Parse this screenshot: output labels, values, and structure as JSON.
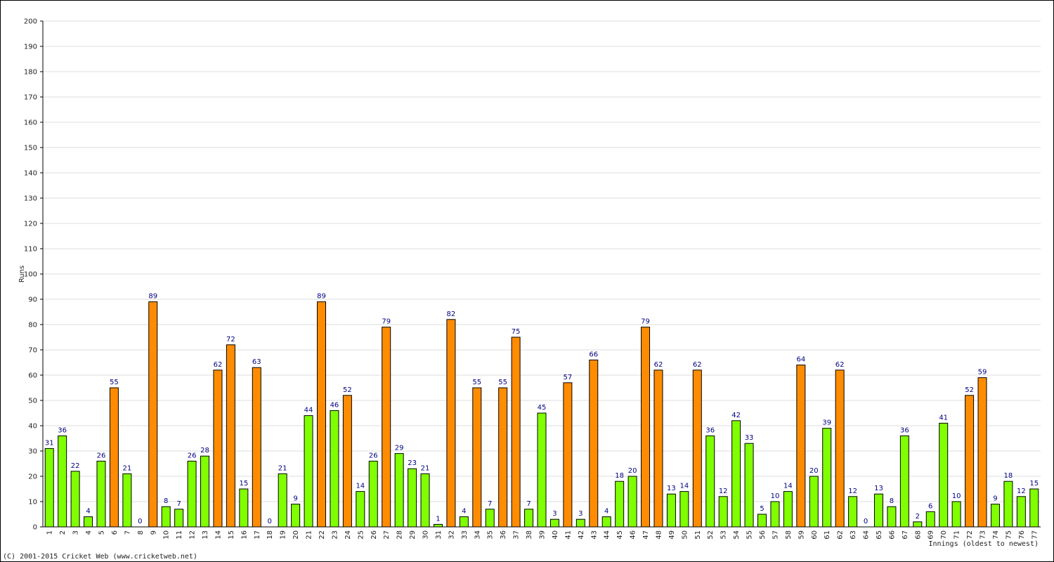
{
  "chart_data": {
    "type": "bar",
    "y_label": "Runs",
    "x_label": "Innings (oldest to newest)",
    "footer": "(C) 2001-2015 Cricket Web (www.cricketweb.net)",
    "categories": [
      "1",
      "2",
      "3",
      "4",
      "5",
      "6",
      "7",
      "8",
      "9",
      "10",
      "11",
      "12",
      "13",
      "14",
      "15",
      "16",
      "17",
      "18",
      "19",
      "20",
      "21",
      "22",
      "23",
      "24",
      "25",
      "26",
      "27",
      "28",
      "29",
      "30",
      "31",
      "32",
      "33",
      "34",
      "35",
      "36",
      "37",
      "38",
      "39",
      "40",
      "41",
      "42",
      "43",
      "44",
      "45",
      "46",
      "47",
      "48",
      "49",
      "50",
      "51",
      "52",
      "53",
      "54",
      "55",
      "56",
      "57",
      "58",
      "59",
      "60",
      "61",
      "62",
      "63",
      "64",
      "65",
      "66",
      "67",
      "68",
      "69",
      "70",
      "71",
      "72",
      "73",
      "74",
      "75",
      "76",
      "77"
    ],
    "values": [
      31,
      36,
      22,
      4,
      26,
      55,
      21,
      0,
      89,
      8,
      7,
      26,
      28,
      62,
      72,
      15,
      63,
      0,
      21,
      9,
      44,
      89,
      46,
      52,
      14,
      26,
      79,
      29,
      23,
      21,
      1,
      82,
      4,
      55,
      7,
      55,
      75,
      7,
      45,
      3,
      57,
      3,
      66,
      4,
      18,
      20,
      79,
      62,
      13,
      14,
      62,
      36,
      12,
      42,
      33,
      5,
      10,
      14,
      64,
      20,
      39,
      62,
      12,
      0,
      13,
      8,
      36,
      2,
      6,
      41,
      10,
      52,
      59,
      9,
      18,
      12,
      15
    ],
    "colors": [
      "#80ff00",
      "#80ff00",
      "#80ff00",
      "#80ff00",
      "#80ff00",
      "#ff8c00",
      "#80ff00",
      "#80ff00",
      "#ff8c00",
      "#80ff00",
      "#80ff00",
      "#80ff00",
      "#80ff00",
      "#ff8c00",
      "#ff8c00",
      "#80ff00",
      "#ff8c00",
      "#80ff00",
      "#80ff00",
      "#80ff00",
      "#80ff00",
      "#ff8c00",
      "#80ff00",
      "#ff8c00",
      "#80ff00",
      "#80ff00",
      "#ff8c00",
      "#80ff00",
      "#80ff00",
      "#80ff00",
      "#80ff00",
      "#ff8c00",
      "#80ff00",
      "#ff8c00",
      "#80ff00",
      "#ff8c00",
      "#ff8c00",
      "#80ff00",
      "#80ff00",
      "#80ff00",
      "#ff8c00",
      "#80ff00",
      "#ff8c00",
      "#80ff00",
      "#80ff00",
      "#80ff00",
      "#ff8c00",
      "#ff8c00",
      "#80ff00",
      "#80ff00",
      "#ff8c00",
      "#80ff00",
      "#80ff00",
      "#80ff00",
      "#80ff00",
      "#80ff00",
      "#80ff00",
      "#80ff00",
      "#ff8c00",
      "#80ff00",
      "#80ff00",
      "#ff8c00",
      "#80ff00",
      "#80ff00",
      "#80ff00",
      "#80ff00",
      "#80ff00",
      "#80ff00",
      "#80ff00",
      "#80ff00",
      "#80ff00",
      "#ff8c00",
      "#ff8c00",
      "#80ff00",
      "#80ff00",
      "#80ff00",
      "#80ff00"
    ],
    "ylim": [
      0,
      200
    ],
    "yticks": [
      0,
      10,
      20,
      30,
      40,
      50,
      60,
      70,
      80,
      90,
      100,
      110,
      120,
      130,
      140,
      150,
      160,
      170,
      180,
      190,
      200
    ],
    "grid": true
  }
}
